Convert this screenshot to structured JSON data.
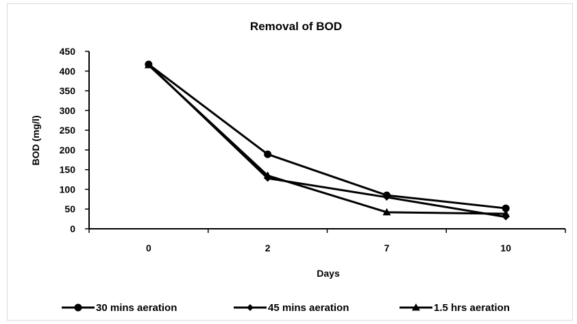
{
  "chart_data": {
    "type": "line",
    "title": "Removal of BOD",
    "xlabel": "Days",
    "ylabel": "BOD (mg/l)",
    "categories": [
      "0",
      "2",
      "7",
      "10"
    ],
    "ylim": [
      0,
      450
    ],
    "yticks": [
      0,
      50,
      100,
      150,
      200,
      250,
      300,
      350,
      400,
      450
    ],
    "grid": false,
    "legend_position": "bottom",
    "series": [
      {
        "name": "30 mins aeration",
        "marker": "circle",
        "values": [
          417,
          189,
          85,
          52
        ]
      },
      {
        "name": "45 mins aeration",
        "marker": "diamond",
        "values": [
          417,
          128,
          80,
          30
        ]
      },
      {
        "name": "1.5 hrs aeration",
        "marker": "triangle",
        "values": [
          415,
          135,
          42,
          38
        ]
      }
    ],
    "colors": {
      "series": "#000000",
      "frame": "#d9d9d9"
    }
  }
}
